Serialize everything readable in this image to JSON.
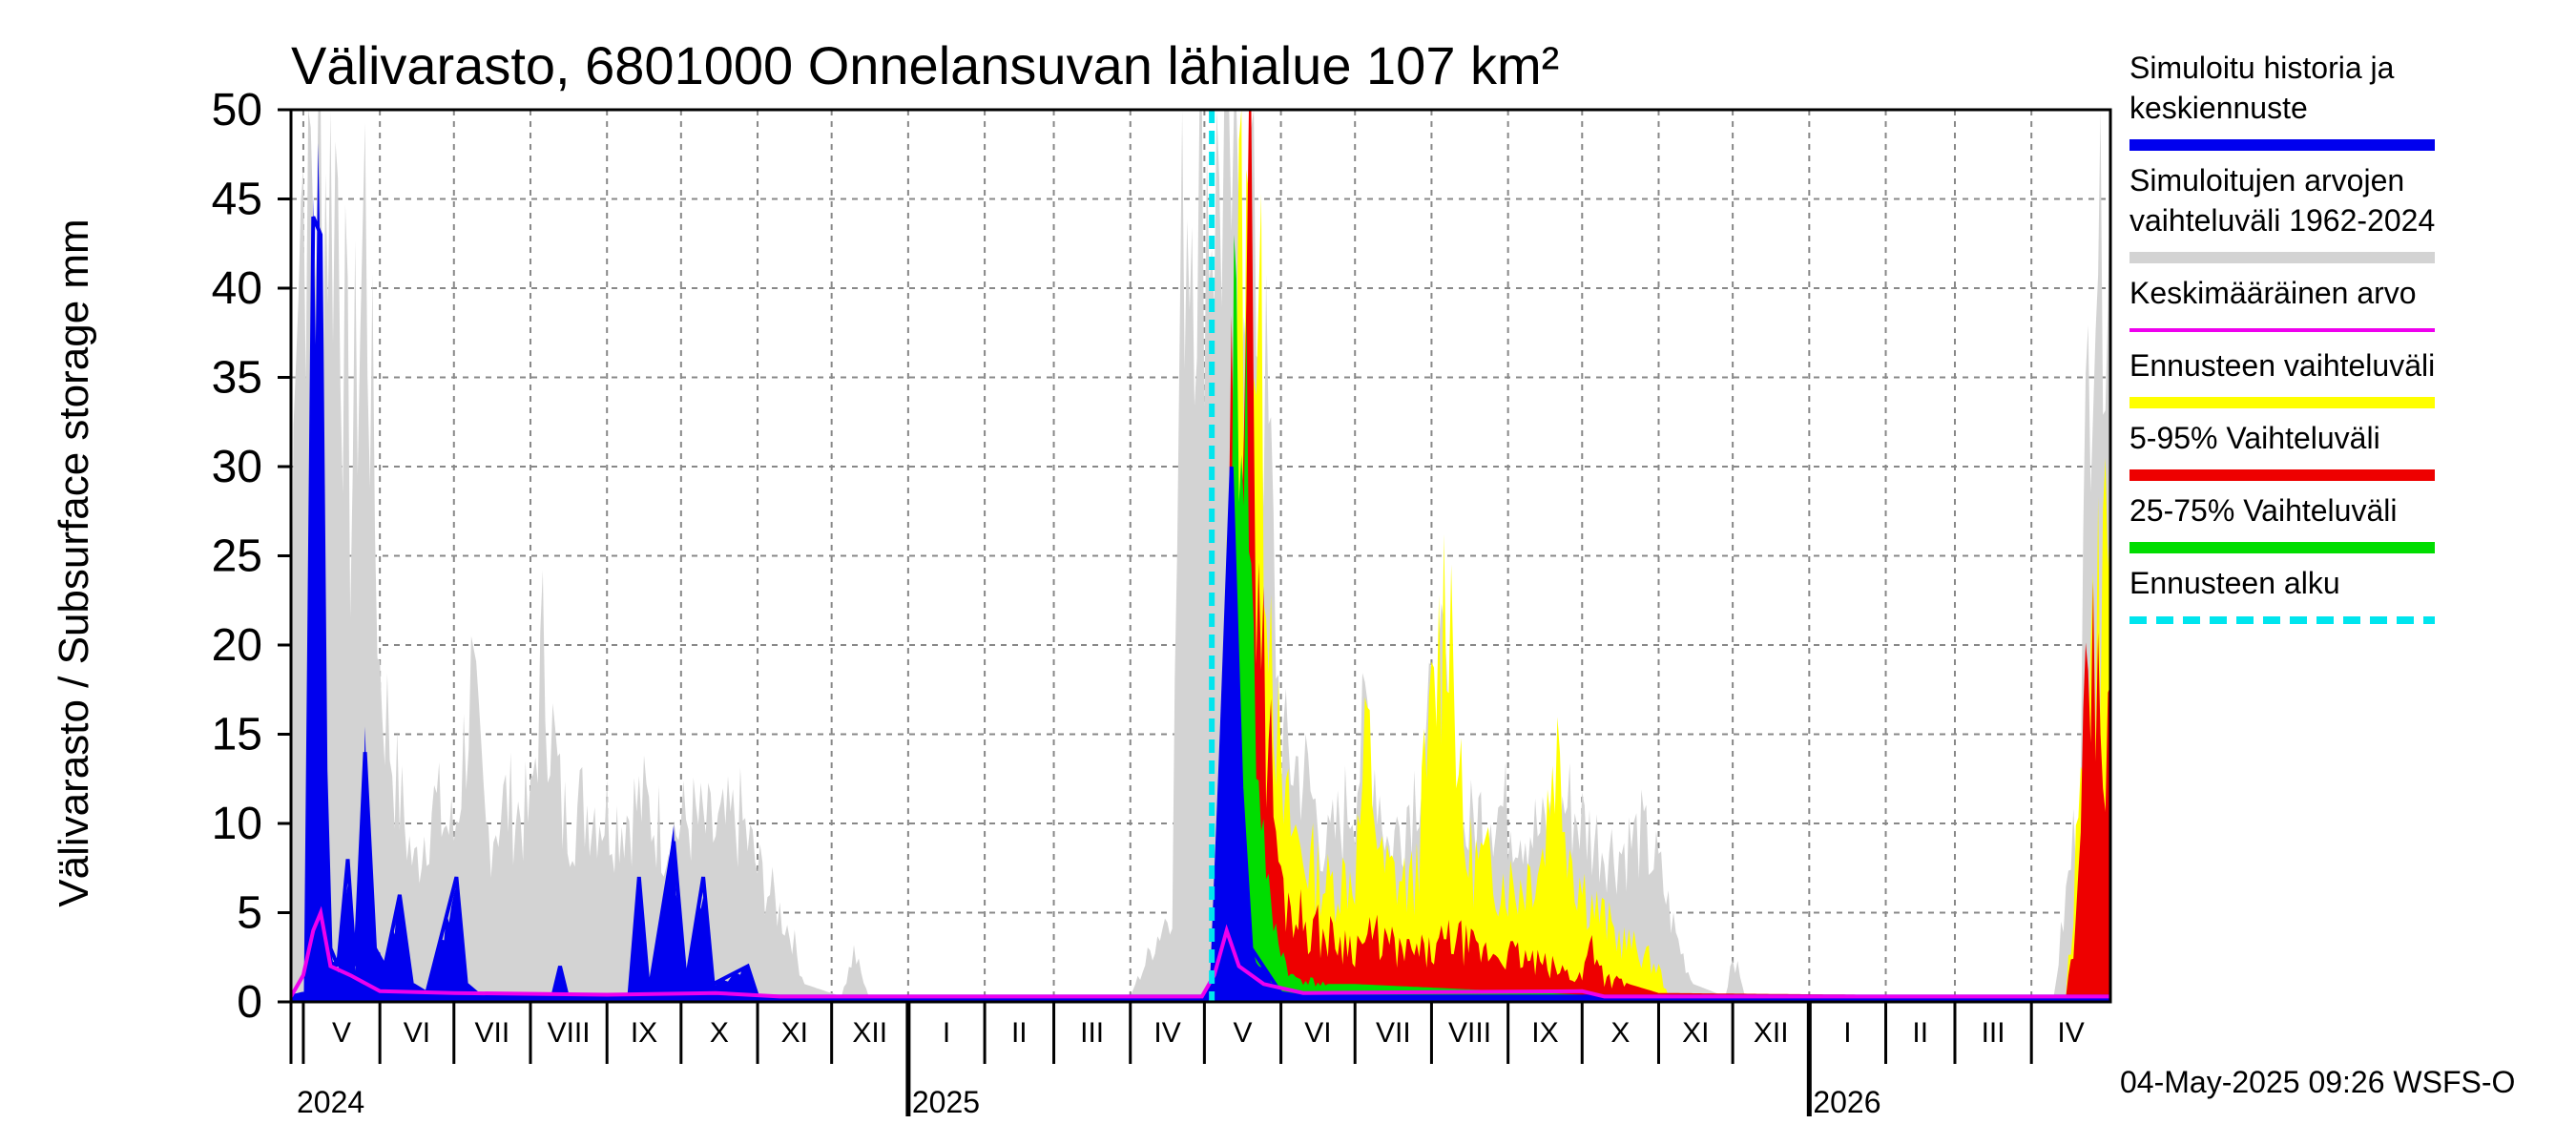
{
  "chart_data": {
    "type": "area",
    "title": "Välivarasto, 6801000 Onnelansuvan lähialue 107 km²",
    "ylabel": "Välivarasto / Subsurface storage  mm",
    "ylim": [
      0,
      50
    ],
    "yticks": [
      "0",
      "5",
      "10",
      "15",
      "20",
      "25",
      "30",
      "35",
      "40",
      "45",
      "50"
    ],
    "grid": true,
    "legend_position": "right",
    "x_start": "2024-04-26",
    "x_end": "2026-05-03",
    "forecast_start": "2025-05-04",
    "month_labels": [
      {
        "date": "2024-05-01",
        "label": "V"
      },
      {
        "date": "2024-06-01",
        "label": "VI"
      },
      {
        "date": "2024-07-01",
        "label": "VII"
      },
      {
        "date": "2024-08-01",
        "label": "VIII"
      },
      {
        "date": "2024-09-01",
        "label": "IX"
      },
      {
        "date": "2024-10-01",
        "label": "X"
      },
      {
        "date": "2024-11-01",
        "label": "XI"
      },
      {
        "date": "2024-12-01",
        "label": "XII"
      },
      {
        "date": "2025-01-01",
        "label": "I"
      },
      {
        "date": "2025-02-01",
        "label": "II"
      },
      {
        "date": "2025-03-01",
        "label": "III"
      },
      {
        "date": "2025-04-01",
        "label": "IV"
      },
      {
        "date": "2025-05-01",
        "label": "V"
      },
      {
        "date": "2025-06-01",
        "label": "VI"
      },
      {
        "date": "2025-07-01",
        "label": "VII"
      },
      {
        "date": "2025-08-01",
        "label": "VIII"
      },
      {
        "date": "2025-09-01",
        "label": "IX"
      },
      {
        "date": "2025-10-01",
        "label": "X"
      },
      {
        "date": "2025-11-01",
        "label": "XI"
      },
      {
        "date": "2025-12-01",
        "label": "XII"
      },
      {
        "date": "2026-01-01",
        "label": "I"
      },
      {
        "date": "2026-02-01",
        "label": "II"
      },
      {
        "date": "2026-03-01",
        "label": "III"
      },
      {
        "date": "2026-04-01",
        "label": "IV"
      }
    ],
    "year_labels": [
      {
        "date": "2024-05-01",
        "label": "2024"
      },
      {
        "date": "2025-01-01",
        "label": "2025"
      },
      {
        "date": "2026-01-01",
        "label": "2026"
      }
    ],
    "legend": [
      {
        "lines": [
          "Simuloitu historia ja",
          "keskiennuste"
        ],
        "color": "#0000ee",
        "style": "solid"
      },
      {
        "lines": [
          "Simuloitujen arvojen",
          "vaihteluväli 1962-2024"
        ],
        "color": "#d3d3d3",
        "style": "solid"
      },
      {
        "lines": [
          "Keskimääräinen arvo"
        ],
        "color": "#ee00ee",
        "style": "thin"
      },
      {
        "lines": [
          "Ennusteen vaihteluväli"
        ],
        "color": "#ffff00",
        "style": "solid"
      },
      {
        "lines": [
          "5-95% Vaihteluväli"
        ],
        "color": "#ee0000",
        "style": "solid"
      },
      {
        "lines": [
          "25-75% Vaihteluväli"
        ],
        "color": "#00dd00",
        "style": "solid"
      },
      {
        "lines": [
          "Ennusteen alku"
        ],
        "color": "#00e5ee",
        "style": "dashed"
      }
    ],
    "series": {
      "hist_range_upper": [
        [
          "2024-04-26",
          17
        ],
        [
          "2024-04-28",
          50
        ],
        [
          "2024-05-15",
          50
        ],
        [
          "2024-05-20",
          30
        ],
        [
          "2024-05-26",
          48
        ],
        [
          "2024-06-01",
          20
        ],
        [
          "2024-06-08",
          13
        ],
        [
          "2024-06-15",
          8
        ],
        [
          "2024-06-22",
          12
        ],
        [
          "2024-07-01",
          10
        ],
        [
          "2024-07-08",
          19
        ],
        [
          "2024-07-14",
          10
        ],
        [
          "2024-07-22",
          12
        ],
        [
          "2024-08-01",
          11
        ],
        [
          "2024-08-06",
          21
        ],
        [
          "2024-08-14",
          11
        ],
        [
          "2024-08-25",
          12
        ],
        [
          "2024-09-05",
          11
        ],
        [
          "2024-09-15",
          12
        ],
        [
          "2024-09-25",
          10
        ],
        [
          "2024-10-05",
          11
        ],
        [
          "2024-10-15",
          10
        ],
        [
          "2024-10-25",
          11
        ],
        [
          "2024-11-01",
          8
        ],
        [
          "2024-11-08",
          6
        ],
        [
          "2024-11-15",
          4
        ],
        [
          "2024-11-20",
          1
        ],
        [
          "2024-12-05",
          0.3
        ],
        [
          "2024-12-10",
          3
        ],
        [
          "2024-12-16",
          0.3
        ],
        [
          "2025-04-01",
          0.3
        ],
        [
          "2025-04-18",
          6
        ],
        [
          "2025-04-22",
          50
        ],
        [
          "2025-05-20",
          50
        ],
        [
          "2025-05-28",
          30
        ],
        [
          "2025-06-01",
          15
        ],
        [
          "2025-06-10",
          14
        ],
        [
          "2025-06-20",
          9
        ],
        [
          "2025-07-01",
          13
        ],
        [
          "2025-07-06",
          17
        ],
        [
          "2025-07-15",
          9
        ],
        [
          "2025-07-25",
          13
        ],
        [
          "2025-08-06",
          19
        ],
        [
          "2025-08-14",
          10
        ],
        [
          "2025-08-25",
          12
        ],
        [
          "2025-09-05",
          11
        ],
        [
          "2025-09-15",
          10
        ],
        [
          "2025-09-25",
          12
        ],
        [
          "2025-10-05",
          10
        ],
        [
          "2025-10-15",
          9
        ],
        [
          "2025-10-25",
          10
        ],
        [
          "2025-11-01",
          8
        ],
        [
          "2025-11-08",
          4
        ],
        [
          "2025-11-15",
          1
        ],
        [
          "2025-11-28",
          0.3
        ],
        [
          "2025-12-01",
          3
        ],
        [
          "2025-12-06",
          0.3
        ],
        [
          "2026-04-10",
          0.3
        ],
        [
          "2026-04-20",
          12
        ],
        [
          "2026-04-26",
          50
        ],
        [
          "2026-05-03",
          50
        ]
      ],
      "forecast_range_upper": [
        [
          "2025-05-04",
          0.3
        ],
        [
          "2025-05-08",
          8
        ],
        [
          "2025-05-13",
          44
        ],
        [
          "2025-05-22",
          43
        ],
        [
          "2025-05-28",
          25
        ],
        [
          "2025-06-01",
          12
        ],
        [
          "2025-06-10",
          9
        ],
        [
          "2025-06-20",
          7
        ],
        [
          "2025-07-01",
          8
        ],
        [
          "2025-07-06",
          16
        ],
        [
          "2025-07-12",
          8
        ],
        [
          "2025-07-25",
          7
        ],
        [
          "2025-08-08",
          27
        ],
        [
          "2025-08-14",
          9
        ],
        [
          "2025-08-25",
          8
        ],
        [
          "2025-09-05",
          7
        ],
        [
          "2025-09-15",
          9
        ],
        [
          "2025-09-20",
          16
        ],
        [
          "2025-09-28",
          8
        ],
        [
          "2025-10-05",
          6
        ],
        [
          "2025-10-15",
          4
        ],
        [
          "2025-10-25",
          3
        ],
        [
          "2025-11-01",
          2
        ],
        [
          "2025-11-05",
          0.3
        ],
        [
          "2026-04-15",
          0.3
        ],
        [
          "2026-04-20",
          10
        ],
        [
          "2026-04-24",
          20
        ],
        [
          "2026-05-03",
          30
        ]
      ],
      "p5_95_upper": [
        [
          "2025-05-04",
          0.3
        ],
        [
          "2025-05-08",
          6
        ],
        [
          "2025-05-13",
          40
        ],
        [
          "2025-05-20",
          44
        ],
        [
          "2025-05-25",
          20
        ],
        [
          "2025-06-01",
          7
        ],
        [
          "2025-06-10",
          5
        ],
        [
          "2025-06-20",
          4
        ],
        [
          "2025-07-01",
          3.5
        ],
        [
          "2025-07-10",
          4
        ],
        [
          "2025-07-20",
          3
        ],
        [
          "2025-08-01",
          3
        ],
        [
          "2025-08-10",
          4
        ],
        [
          "2025-08-20",
          3
        ],
        [
          "2025-09-01",
          3
        ],
        [
          "2025-09-10",
          2.5
        ],
        [
          "2025-09-20",
          2
        ],
        [
          "2025-10-01",
          1.5
        ],
        [
          "2025-10-05",
          4
        ],
        [
          "2025-10-10",
          1.5
        ],
        [
          "2025-10-20",
          1
        ],
        [
          "2025-11-01",
          0.5
        ],
        [
          "2026-04-15",
          0.3
        ],
        [
          "2026-04-20",
          6
        ],
        [
          "2026-04-24",
          20
        ],
        [
          "2026-05-03",
          15
        ]
      ],
      "p25_75_upper": [
        [
          "2025-05-04",
          0.3
        ],
        [
          "2025-05-08",
          4
        ],
        [
          "2025-05-13",
          38
        ],
        [
          "2025-05-18",
          35
        ],
        [
          "2025-05-22",
          15
        ],
        [
          "2025-05-28",
          5
        ],
        [
          "2025-06-05",
          1.5
        ],
        [
          "2025-06-20",
          1
        ],
        [
          "2025-07-01",
          1
        ],
        [
          "2025-08-01",
          0.8
        ],
        [
          "2025-09-01",
          0.6
        ],
        [
          "2025-10-01",
          0.4
        ],
        [
          "2025-11-01",
          0.3
        ]
      ],
      "simulated": [
        [
          "2024-04-26",
          0.3
        ],
        [
          "2024-05-02",
          0.5
        ],
        [
          "2024-05-05",
          44
        ],
        [
          "2024-05-08",
          43
        ],
        [
          "2024-05-10",
          13
        ],
        [
          "2024-05-12",
          3
        ],
        [
          "2024-05-15",
          2
        ],
        [
          "2024-05-19",
          8
        ],
        [
          "2024-05-22",
          2
        ],
        [
          "2024-05-26",
          14
        ],
        [
          "2024-05-30",
          3
        ],
        [
          "2024-06-03",
          2
        ],
        [
          "2024-06-09",
          6
        ],
        [
          "2024-06-14",
          1
        ],
        [
          "2024-06-20",
          0.5
        ],
        [
          "2024-07-02",
          7
        ],
        [
          "2024-07-06",
          1
        ],
        [
          "2024-07-12",
          0.3
        ],
        [
          "2024-08-10",
          0.3
        ],
        [
          "2024-08-13",
          2
        ],
        [
          "2024-08-16",
          0.3
        ],
        [
          "2024-09-10",
          0.3
        ],
        [
          "2024-09-14",
          7
        ],
        [
          "2024-09-18",
          0.5
        ],
        [
          "2024-09-28",
          9
        ],
        [
          "2024-10-03",
          1
        ],
        [
          "2024-10-10",
          7
        ],
        [
          "2024-10-14",
          1
        ],
        [
          "2024-10-28",
          2
        ],
        [
          "2024-11-01",
          0.3
        ],
        [
          "2025-04-30",
          0.3
        ],
        [
          "2025-05-04",
          1
        ],
        [
          "2025-05-08",
          15
        ],
        [
          "2025-05-12",
          30
        ],
        [
          "2025-05-16",
          12
        ],
        [
          "2025-05-20",
          3
        ],
        [
          "2025-06-01",
          0.5
        ],
        [
          "2025-06-10",
          0.3
        ],
        [
          "2026-05-03",
          0.3
        ]
      ],
      "mean": [
        [
          "2024-04-26",
          0.3
        ],
        [
          "2024-05-01",
          1.5
        ],
        [
          "2024-05-05",
          4
        ],
        [
          "2024-05-08",
          5
        ],
        [
          "2024-05-12",
          2
        ],
        [
          "2024-05-20",
          1.5
        ],
        [
          "2024-06-01",
          0.6
        ],
        [
          "2024-07-01",
          0.5
        ],
        [
          "2024-09-01",
          0.4
        ],
        [
          "2024-10-15",
          0.5
        ],
        [
          "2024-11-10",
          0.3
        ],
        [
          "2025-04-30",
          0.3
        ],
        [
          "2025-05-05",
          1.5
        ],
        [
          "2025-05-10",
          4
        ],
        [
          "2025-05-15",
          2
        ],
        [
          "2025-05-25",
          1
        ],
        [
          "2025-06-10",
          0.5
        ],
        [
          "2025-10-01",
          0.6
        ],
        [
          "2025-10-10",
          0.3
        ],
        [
          "2026-05-03",
          0.3
        ]
      ]
    }
  },
  "footer": "04-May-2025 09:26 WSFS-O"
}
